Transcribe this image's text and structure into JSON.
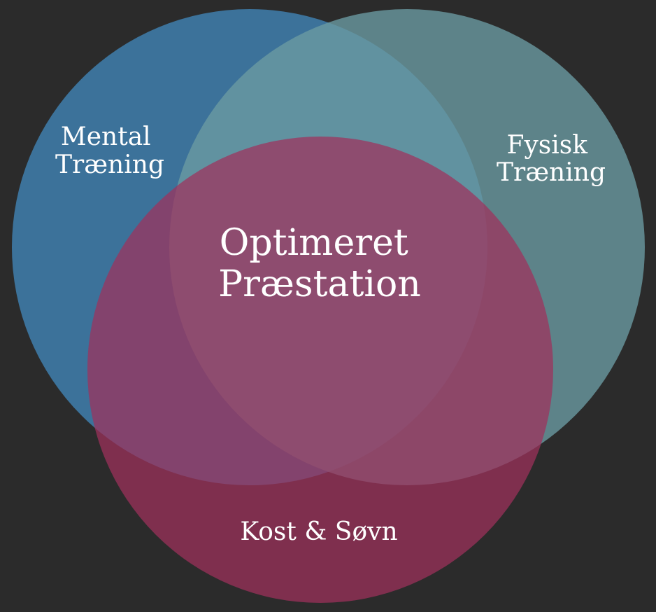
{
  "background": "#2b2b2b",
  "sets": [
    {
      "id": "mental",
      "label_lines": [
        "Mental",
        "Træning"
      ],
      "color": "#3f7fae"
    },
    {
      "id": "fysisk",
      "label_lines": [
        "Fysisk",
        "Træning"
      ],
      "color": "#6a9aa1"
    },
    {
      "id": "kost",
      "label_lines": [
        "Kost & Søvn"
      ],
      "color": "#a0305c"
    }
  ],
  "center": {
    "label_lines": [
      "Optimeret",
      "Præstation"
    ]
  }
}
